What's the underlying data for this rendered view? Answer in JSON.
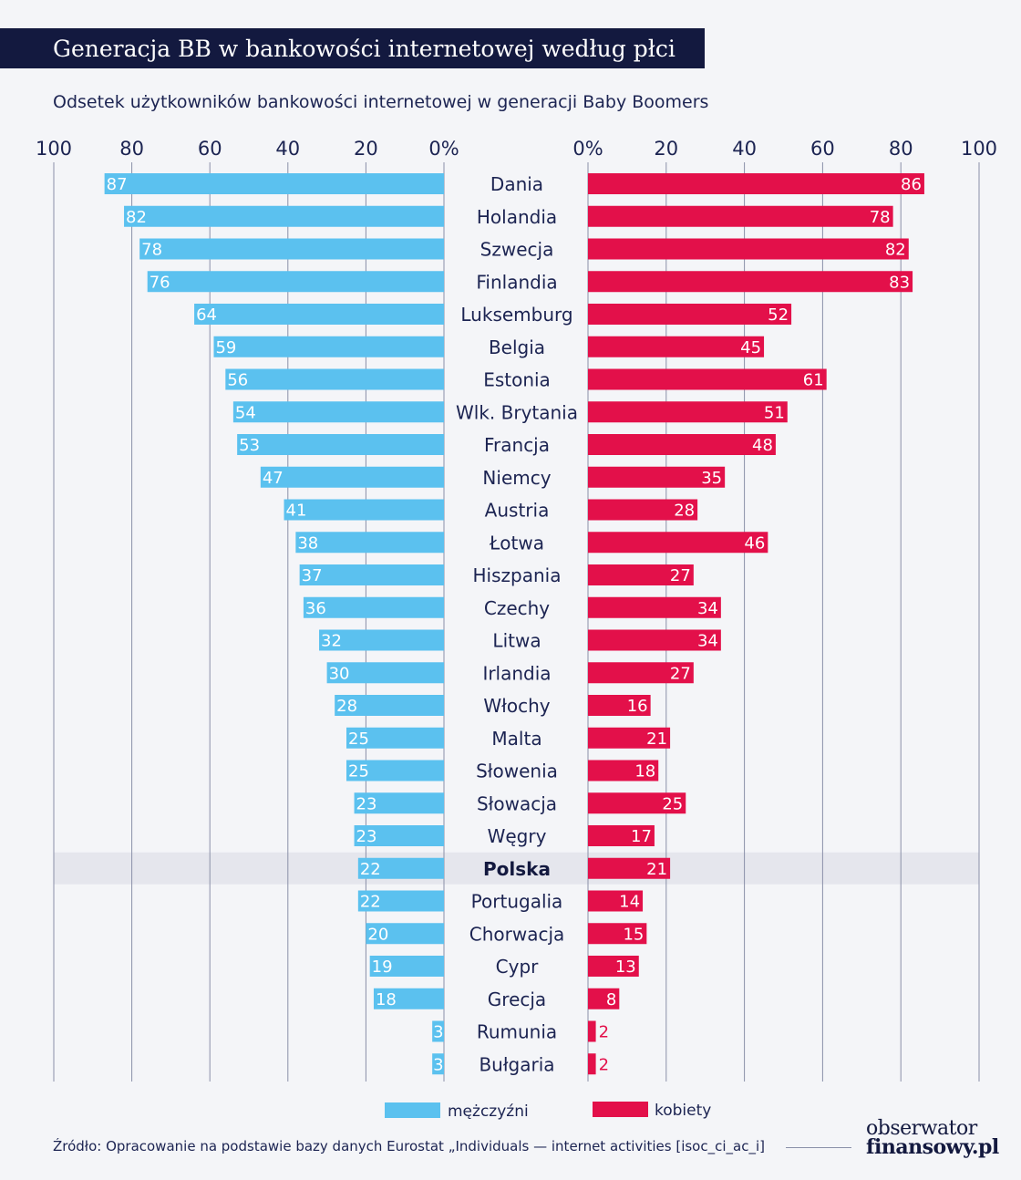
{
  "title": "Generacja BB w bankowości internetowej według płci",
  "subtitle": "Odsetek użytkowników bankowości internetowej w generacji Baby Boomers",
  "source": "Źródło: Opracowanie na podstawie bazy danych Eurostat „Individuals — internet activities [isoc_ci_ac_i]",
  "logo": {
    "line1": "obserwator",
    "line2": "finansowy.pl"
  },
  "colors": {
    "men": "#5bc1ef",
    "women": "#e3104a",
    "highlight_text": "#13193f",
    "text": "#1c2452",
    "grid": "#8a90a8"
  },
  "chart_data": {
    "type": "bar",
    "orientation": "horizontal-butterfly",
    "categories": [
      "Dania",
      "Holandia",
      "Szwecja",
      "Finlandia",
      "Luksemburg",
      "Belgia",
      "Estonia",
      "Wlk. Brytania",
      "Francja",
      "Niemcy",
      "Austria",
      "Łotwa",
      "Hiszpania",
      "Czechy",
      "Litwa",
      "Irlandia",
      "Włochy",
      "Malta",
      "Słowenia",
      "Słowacja",
      "Węgry",
      "Polska",
      "Portugalia",
      "Chorwacja",
      "Cypr",
      "Grecja",
      "Rumunia",
      "Bułgaria"
    ],
    "highlight": "Polska",
    "series": [
      {
        "name": "mężczyźni",
        "side": "left",
        "color": "#5bc1ef",
        "values": [
          87,
          82,
          78,
          76,
          64,
          59,
          56,
          54,
          53,
          47,
          41,
          38,
          37,
          36,
          32,
          30,
          28,
          25,
          25,
          23,
          23,
          22,
          22,
          20,
          19,
          18,
          3,
          3
        ]
      },
      {
        "name": "kobiety",
        "side": "right",
        "color": "#e3104a",
        "values": [
          86,
          78,
          82,
          83,
          52,
          45,
          61,
          51,
          48,
          35,
          28,
          46,
          27,
          34,
          34,
          27,
          16,
          21,
          18,
          25,
          17,
          21,
          14,
          15,
          13,
          8,
          2,
          2
        ]
      }
    ],
    "left_axis": {
      "ticks": [
        "100",
        "80",
        "60",
        "40",
        "20",
        "0%"
      ],
      "range": [
        0,
        100
      ]
    },
    "right_axis": {
      "ticks": [
        "0%",
        "20",
        "40",
        "60",
        "80",
        "100"
      ],
      "range": [
        0,
        100
      ]
    },
    "grid": true,
    "legend_position": "bottom"
  }
}
